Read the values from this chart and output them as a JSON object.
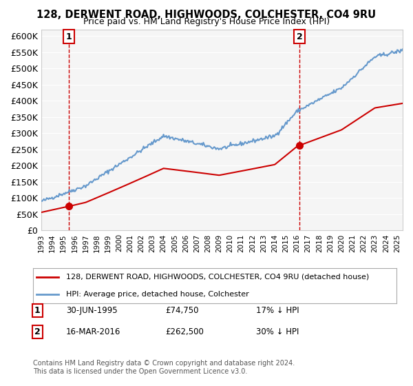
{
  "title": "128, DERWENT ROAD, HIGHWOODS, COLCHESTER, CO4 9RU",
  "subtitle": "Price paid vs. HM Land Registry's House Price Index (HPI)",
  "ylim": [
    0,
    620000
  ],
  "yticks": [
    0,
    50000,
    100000,
    150000,
    200000,
    250000,
    300000,
    350000,
    400000,
    450000,
    500000,
    550000,
    600000
  ],
  "ytick_labels": [
    "£0",
    "£50K",
    "£100K",
    "£150K",
    "£200K",
    "£250K",
    "£300K",
    "£350K",
    "£400K",
    "£450K",
    "£500K",
    "£550K",
    "£600K"
  ],
  "sale1_date": "1995-06-30",
  "sale1_price": 74750,
  "sale1_label": "1",
  "sale2_date": "2016-03-16",
  "sale2_price": 262500,
  "sale2_label": "2",
  "hpi_color": "#6699cc",
  "sale_color": "#cc0000",
  "vline_color": "#cc0000",
  "background_color": "#f5f5f5",
  "legend_line1": "128, DERWENT ROAD, HIGHWOODS, COLCHESTER, CO4 9RU (detached house)",
  "legend_line2": "HPI: Average price, detached house, Colchester",
  "annotation1": "1    30-JUN-1995       £74,750        17% ↓ HPI",
  "annotation2": "2    16-MAR-2016       £262,500      30% ↓ HPI",
  "footnote": "Contains HM Land Registry data © Crown copyright and database right 2024.\nThis data is licensed under the Open Government Licence v3.0.",
  "xlim_start": 1993.0,
  "xlim_end": 2025.5
}
